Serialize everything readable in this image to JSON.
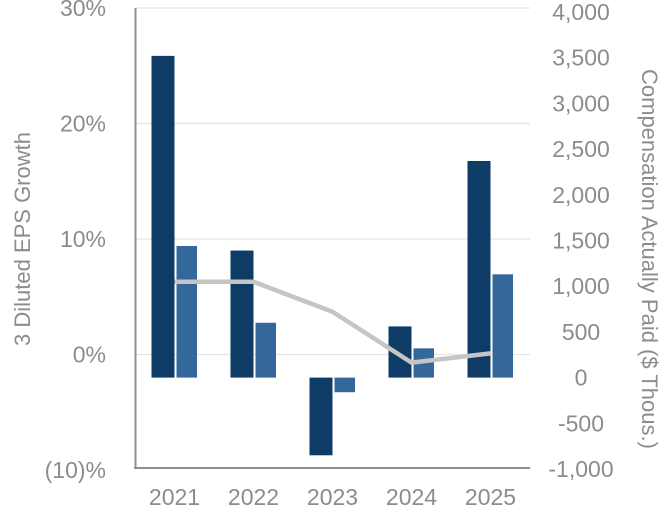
{
  "colors": {
    "background": "#ffffff",
    "dark_bar": "#0e3c67",
    "light_bar": "#35689a",
    "line": "#c5c5c5",
    "gridline": "#e4e4e4",
    "axis_line": "#8f8f8f",
    "tick_text": "#8c8c8c",
    "axis_title_text": "#8c8c8c"
  },
  "chart_data": {
    "type": "bar",
    "subtype": "dual-axis combo (two bar series on right axis, one line series on left axis)",
    "categories": [
      "2021",
      "2022",
      "2023",
      "2024",
      "2025"
    ],
    "series": [
      {
        "name": "compensation-dark-blue-bars",
        "axis": "right",
        "color_key": "dark_bar",
        "values": [
          3520,
          1390,
          -850,
          560,
          2370
        ]
      },
      {
        "name": "compensation-light-blue-bars",
        "axis": "right",
        "color_key": "light_bar",
        "values": [
          1440,
          600,
          -160,
          320,
          1130
        ]
      }
    ],
    "line_series": [
      {
        "name": "eps-growth-line",
        "axis": "left",
        "color_key": "line",
        "values": [
          6.3,
          6.3,
          3.7,
          -0.7,
          0.1
        ]
      }
    ],
    "left_axis": {
      "label": "3 Diluted EPS Growth",
      "tick_labels": [
        "30%",
        "20%",
        "10%",
        "0%",
        "(10)%"
      ],
      "tick_values": [
        30,
        20,
        10,
        0,
        -10
      ],
      "range": [
        -10,
        30
      ]
    },
    "right_axis": {
      "label": "Compensation Actually Paid ($ Thous.)",
      "tick_labels": [
        "4,000",
        "3,500",
        "3,000",
        "2,500",
        "2,000",
        "1,500",
        "1,000",
        "500",
        "0",
        "-500",
        "-1,000"
      ],
      "tick_values": [
        4000,
        3500,
        3000,
        2500,
        2000,
        1500,
        1000,
        500,
        0,
        -500,
        -1000
      ],
      "range": [
        -1000,
        4000
      ]
    },
    "x_axis": {
      "tick_labels": [
        "2021",
        "2022",
        "2023",
        "2024",
        "2025"
      ]
    },
    "grid": {
      "horizontal_gridlines_at_left_ticks": true,
      "vertical_gridlines": false
    },
    "legend": null,
    "title": ""
  }
}
